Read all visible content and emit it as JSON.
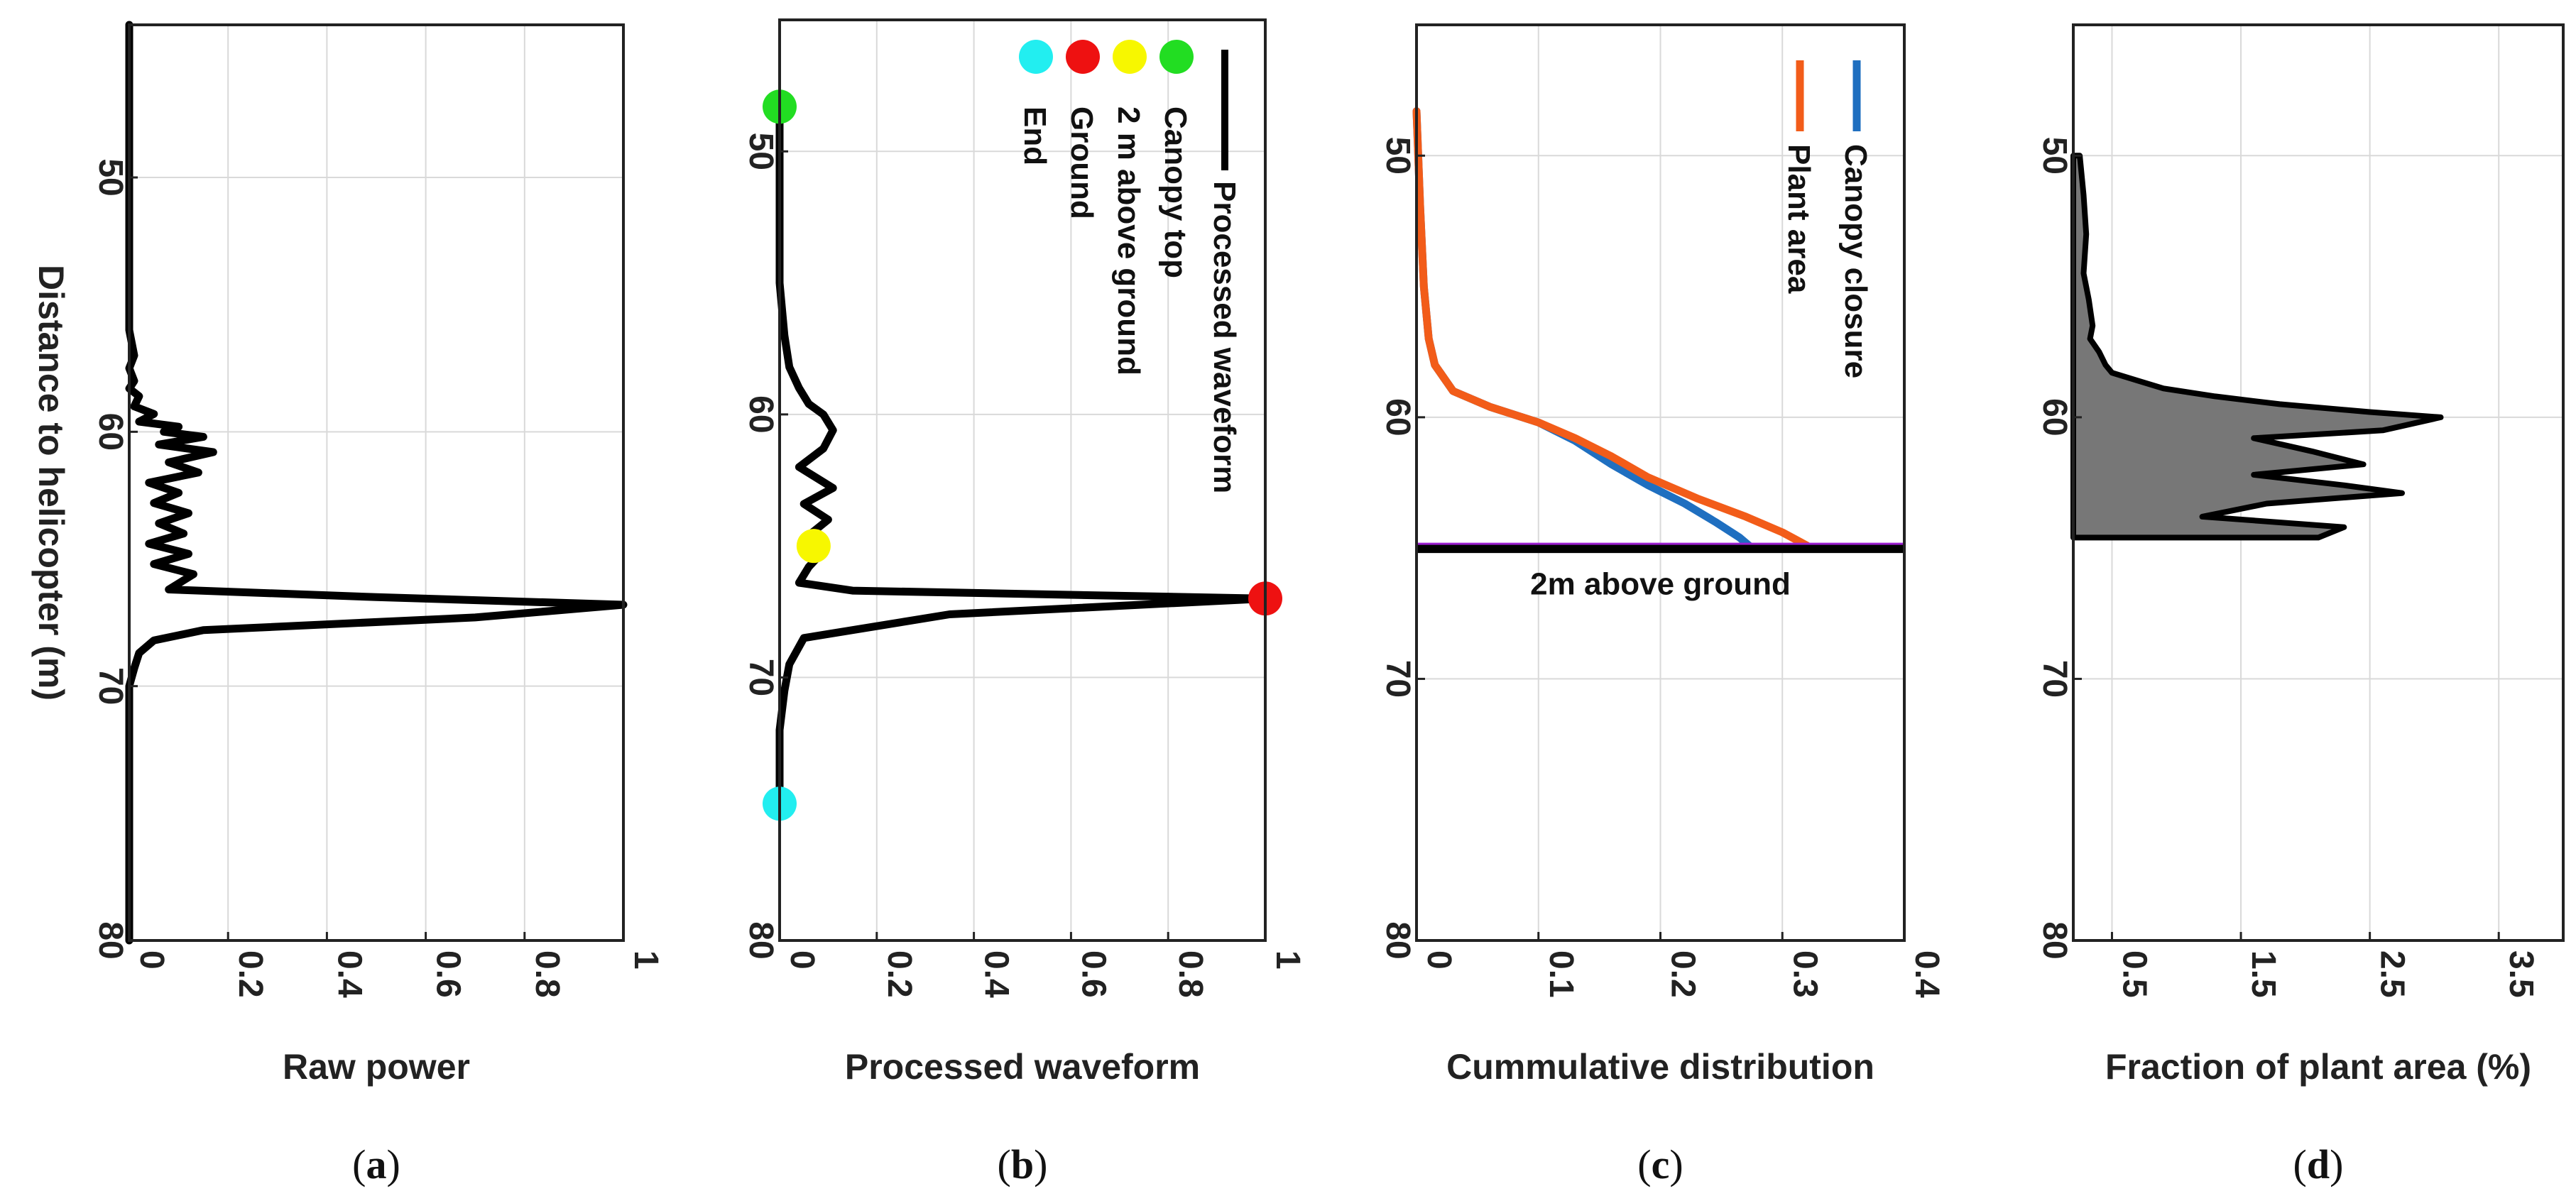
{
  "chart_data": [
    {
      "id": "a",
      "type": "line",
      "caption_letter": "a",
      "xlabel": "Raw power",
      "ylabel": "Distance to helicopter (m)",
      "xlim": [
        0,
        1
      ],
      "ylim": [
        44,
        80
      ],
      "xticks": [
        0,
        0.2,
        0.4,
        0.6,
        0.8,
        1
      ],
      "xtick_labels": [
        "0",
        "0.2",
        "0.4",
        "0.6",
        "0.8",
        "1"
      ],
      "yticks": [
        50,
        60,
        70,
        80
      ],
      "ytick_labels": [
        "50",
        "60",
        "70",
        "80"
      ],
      "series": [
        {
          "name": "Raw power",
          "color": "#000000",
          "x": [
            0.0,
            0.0,
            0.0,
            0.0,
            0.01,
            0.0,
            0.01,
            0.0,
            0.02,
            0.01,
            0.05,
            0.02,
            0.1,
            0.07,
            0.15,
            0.06,
            0.17,
            0.08,
            0.14,
            0.04,
            0.1,
            0.05,
            0.12,
            0.06,
            0.11,
            0.04,
            0.12,
            0.05,
            0.13,
            0.08,
            0.5,
            1.0,
            0.7,
            0.15,
            0.05,
            0.02,
            0.01,
            0.0,
            0.0,
            0.0,
            0.0,
            0.0
          ],
          "y": [
            44,
            50,
            54,
            56,
            57,
            57.5,
            58,
            58.3,
            58.6,
            59,
            59.3,
            59.6,
            59.8,
            60.0,
            60.2,
            60.5,
            60.8,
            61.2,
            61.6,
            62.0,
            62.4,
            62.8,
            63.2,
            63.6,
            64.0,
            64.4,
            64.8,
            65.2,
            65.6,
            66.2,
            66.5,
            66.8,
            67.3,
            67.8,
            68.2,
            68.7,
            69.3,
            70.0,
            72,
            75,
            78,
            80
          ]
        }
      ]
    },
    {
      "id": "b",
      "type": "line",
      "caption_letter": "b",
      "xlabel": "Processed waveform",
      "ylabel": "",
      "xlim": [
        0,
        1
      ],
      "ylim": [
        45,
        80
      ],
      "xticks": [
        0,
        0.2,
        0.4,
        0.6,
        0.8,
        1
      ],
      "xtick_labels": [
        "0",
        "0.2",
        "0.4",
        "0.6",
        "0.8",
        "1"
      ],
      "yticks": [
        50,
        60,
        70,
        80
      ],
      "ytick_labels": [
        "50",
        "60",
        "70",
        "80"
      ],
      "series": [
        {
          "name": "Processed waveform",
          "color": "#000000",
          "x": [
            0.0,
            0.0,
            0.01,
            0.02,
            0.04,
            0.06,
            0.09,
            0.11,
            0.09,
            0.04,
            0.11,
            0.05,
            0.1,
            0.06,
            0.09,
            0.06,
            0.04,
            0.15,
            1.0,
            0.35,
            0.05,
            0.02,
            0.01,
            0.0,
            0.0
          ],
          "y": [
            48.3,
            55.0,
            57.0,
            58.2,
            59.0,
            59.6,
            60.0,
            60.6,
            61.3,
            62.0,
            62.8,
            63.4,
            64.0,
            64.6,
            65.2,
            65.8,
            66.4,
            66.7,
            67.0,
            67.6,
            68.5,
            69.5,
            70.5,
            72.0,
            74.8
          ]
        }
      ],
      "markers": [
        {
          "name": "Canopy top",
          "x": 0.0,
          "y": 48.3,
          "color": "#22dd22"
        },
        {
          "name": "2 m above ground",
          "x": 0.07,
          "y": 65.0,
          "color": "#f7f700"
        },
        {
          "name": "Ground",
          "x": 1.0,
          "y": 67.0,
          "color": "#ee1111"
        },
        {
          "name": "End",
          "x": 0.0,
          "y": 74.8,
          "color": "#22eef0"
        }
      ],
      "legend": {
        "placement": "top-right",
        "line_label": "Processed waveform",
        "marker_labels": [
          "Canopy top",
          "2 m above ground",
          "Ground",
          "End"
        ]
      }
    },
    {
      "id": "c",
      "type": "line",
      "caption_letter": "c",
      "xlabel": "Cummulative distribution",
      "ylabel": "",
      "xlim": [
        0,
        0.4
      ],
      "ylim": [
        45,
        80
      ],
      "xticks": [
        0,
        0.1,
        0.2,
        0.3,
        0.4
      ],
      "xtick_labels": [
        "0",
        "0.1",
        "0.2",
        "0.3",
        "0.4"
      ],
      "yticks": [
        50,
        60,
        70,
        80
      ],
      "ytick_labels": [
        "50",
        "60",
        "70",
        "80"
      ],
      "annotation": "2m above ground",
      "ground_line_y": 65.0,
      "series": [
        {
          "name": "Canopy closure",
          "color": "#1f6fc0",
          "x": [
            0.0,
            0.003,
            0.006,
            0.01,
            0.015,
            0.03,
            0.06,
            0.1,
            0.13,
            0.16,
            0.19,
            0.22,
            0.245,
            0.265,
            0.275
          ],
          "y": [
            48.3,
            52.0,
            55.0,
            57.0,
            58.0,
            59.0,
            59.6,
            60.2,
            60.9,
            61.8,
            62.6,
            63.3,
            64.0,
            64.6,
            65.0
          ]
        },
        {
          "name": "Plant area",
          "color": "#f25c19",
          "x": [
            0.0,
            0.003,
            0.006,
            0.01,
            0.015,
            0.03,
            0.06,
            0.1,
            0.13,
            0.16,
            0.19,
            0.23,
            0.27,
            0.3,
            0.32
          ],
          "y": [
            48.3,
            52.0,
            55.0,
            57.0,
            58.0,
            59.0,
            59.6,
            60.2,
            60.8,
            61.5,
            62.3,
            63.1,
            63.8,
            64.4,
            64.9
          ]
        }
      ],
      "legend": {
        "placement": "top-right",
        "labels": [
          "Canopy closure",
          "Plant area"
        ]
      }
    },
    {
      "id": "d",
      "type": "area",
      "caption_letter": "d",
      "xlabel": "Fraction of plant area (%)",
      "ylabel": "",
      "xlim": [
        0.2,
        4.0
      ],
      "ylim": [
        45,
        80
      ],
      "xticks": [
        0.5,
        1.5,
        2.5,
        3.5
      ],
      "xtick_labels": [
        "0.5",
        "1.5",
        "2.5",
        "3.5"
      ],
      "yticks": [
        50,
        60,
        70,
        80
      ],
      "ytick_labels": [
        "50",
        "60",
        "70",
        "80"
      ],
      "series": [
        {
          "name": "Fraction of plant area",
          "color": "#777777",
          "x": [
            0.25,
            0.28,
            0.3,
            0.28,
            0.32,
            0.35,
            0.33,
            0.4,
            0.45,
            0.5,
            0.7,
            0.9,
            1.3,
            1.8,
            2.5,
            3.05,
            2.6,
            1.6,
            2.05,
            2.45,
            1.6,
            2.3,
            2.75,
            1.7,
            1.2,
            2.3,
            2.1,
            0.25
          ],
          "y": [
            50.0,
            51.5,
            53.0,
            54.5,
            55.5,
            56.5,
            57.0,
            57.5,
            58.0,
            58.3,
            58.6,
            58.9,
            59.2,
            59.5,
            59.8,
            60.0,
            60.5,
            60.8,
            61.3,
            61.8,
            62.2,
            62.6,
            62.9,
            63.3,
            63.8,
            64.2,
            64.6,
            64.6
          ]
        }
      ]
    }
  ]
}
